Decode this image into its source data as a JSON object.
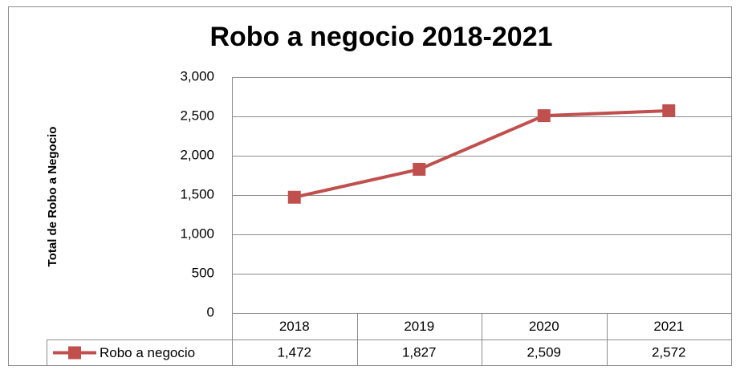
{
  "chart_data": {
    "type": "line",
    "title": "Robo a negocio 2018-2021",
    "y_label": "Total de Robo a Negocio",
    "categories": [
      "2018",
      "2019",
      "2020",
      "2021"
    ],
    "series": [
      {
        "name": "Robo a negocio",
        "color": "#c0504d",
        "values": [
          1472,
          1827,
          2509,
          2572
        ],
        "value_labels": [
          "1,472",
          "1,827",
          "2,509",
          "2,572"
        ]
      }
    ],
    "ylim": [
      0,
      3000
    ],
    "yticks": [
      0,
      500,
      {
        "value": 1000,
        "label": "1,000"
      },
      {
        "value": 1500,
        "label": "1,500"
      },
      {
        "value": 2000,
        "label": "2,000"
      },
      {
        "value": 2500,
        "label": "2,500"
      },
      {
        "value": 3000,
        "label": "3,000"
      }
    ],
    "grid": true
  }
}
